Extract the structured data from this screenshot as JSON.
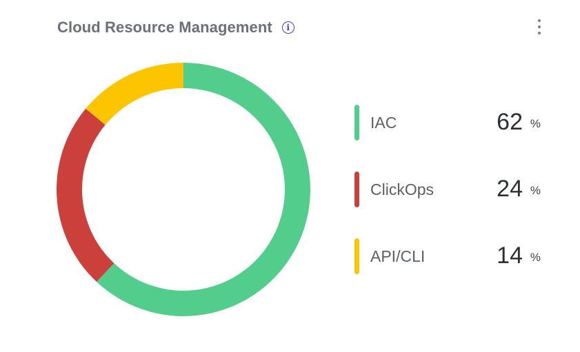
{
  "header": {
    "title": "Cloud Resource Management",
    "info_icon": "info-icon",
    "menu_icon": "kebab-menu-icon"
  },
  "chart_data": {
    "type": "pie",
    "variant": "donut",
    "title": "Cloud Resource Management",
    "unit": "%",
    "legend_position": "right",
    "categories": [
      "IAC",
      "ClickOps",
      "API/CLI"
    ],
    "values": [
      62,
      24,
      14
    ],
    "colors": [
      "#52cd8b",
      "#cc403c",
      "#fdc500"
    ],
    "start_angle": "12 o'clock",
    "direction": "clockwise"
  }
}
